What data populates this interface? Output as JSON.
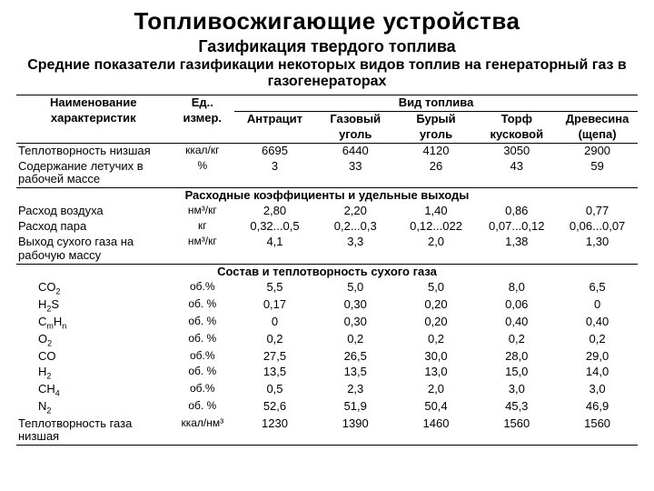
{
  "title": "Топливосжигающие устройства",
  "subtitle": "Газификация твердого топлива",
  "description": "Средние показатели газификации некоторых видов топлив на генераторный газ в газогенераторах",
  "header": {
    "name_col": "Наименование характеристик",
    "unit_col": "Ед. измер.",
    "fuel_group": "Вид топлива",
    "fuels": [
      "Антрацит",
      "Газовый уголь",
      "Бурый уголь",
      "Торф кусковой",
      "Древесина (щепа)"
    ]
  },
  "section1_rows": [
    {
      "name": "Теплотворность низшая",
      "unit": "ккал/кг",
      "vals": [
        "6695",
        "6440",
        "4120",
        "3050",
        "2900"
      ]
    },
    {
      "name": "Содержание летучих в рабочей массе",
      "unit": "%",
      "vals": [
        "3",
        "33",
        "26",
        "43",
        "59"
      ]
    }
  ],
  "section2_title": "Расходные коэффициенты и удельные выходы",
  "section2_rows": [
    {
      "name": "Расход воздуха",
      "unit": "нм³/кг",
      "vals": [
        "2,80",
        "2,20",
        "1,40",
        "0,86",
        "0,77"
      ]
    },
    {
      "name": "Расход пара",
      "unit": "кг",
      "vals": [
        "0,32...0,5",
        "0,2...0,3",
        "0,12...022",
        "0,07...0,12",
        "0,06...0,07"
      ]
    },
    {
      "name": "Выход сухого газа на рабочую массу",
      "unit": "нм³/кг",
      "vals": [
        "4,1",
        "3,3",
        "2,0",
        "1,38",
        "1,30"
      ]
    }
  ],
  "section3_title": "Состав и теплотворность сухого газа",
  "section3_rows": [
    {
      "name_html": "CO<span class='sub'>2</span>",
      "unit": "об.%",
      "vals": [
        "5,5",
        "5,0",
        "5,0",
        "8,0",
        "6,5"
      ],
      "indent": true
    },
    {
      "name_html": "H<span class='sub'>2</span>S",
      "unit": "об. %",
      "vals": [
        "0,17",
        "0,30",
        "0,20",
        "0,06",
        "0"
      ],
      "indent": true
    },
    {
      "name_html": "C<span class='sub'>m</span>H<span class='sub'>n</span>",
      "unit": "об. %",
      "vals": [
        "0",
        "0,30",
        "0,20",
        "0,40",
        "0,40"
      ],
      "indent": true
    },
    {
      "name_html": "O<span class='sub'>2</span>",
      "unit": "об. %",
      "vals": [
        "0,2",
        "0,2",
        "0,2",
        "0,2",
        "0,2"
      ],
      "indent": true
    },
    {
      "name_html": "CO",
      "unit": "об.%",
      "vals": [
        "27,5",
        "26,5",
        "30,0",
        "28,0",
        "29,0"
      ],
      "indent": true
    },
    {
      "name_html": "H<span class='sub'>2</span>",
      "unit": "об. %",
      "vals": [
        "13,5",
        "13,5",
        "13,0",
        "15,0",
        "14,0"
      ],
      "indent": true
    },
    {
      "name_html": "CH<span class='sub'>4</span>",
      "unit": "об.%",
      "vals": [
        "0,5",
        "2,3",
        "2,0",
        "3,0",
        "3,0"
      ],
      "indent": true
    },
    {
      "name_html": "N<span class='sub'>2</span>",
      "unit": "об. %",
      "vals": [
        "52,6",
        "51,9",
        "50,4",
        "45,3",
        "46,9"
      ],
      "indent": true
    },
    {
      "name_html": "Теплотворность газа низшая",
      "unit": "ккал/нм³",
      "vals": [
        "1230",
        "1390",
        "1460",
        "1560",
        "1560"
      ],
      "indent": false
    }
  ]
}
